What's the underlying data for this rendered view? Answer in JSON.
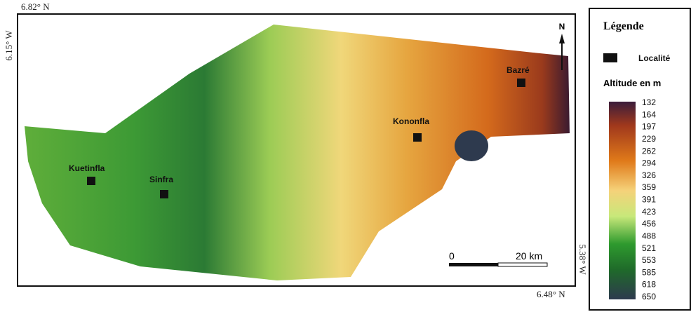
{
  "map": {
    "coordinates": {
      "top_left": "6.82° N",
      "left": "6.15° W",
      "right": "5.38° W",
      "bottom_right": "6.48° N"
    },
    "north": "N",
    "localities": [
      "Kuetinfla",
      "Sinfra",
      "Kononfla",
      "Bazré"
    ],
    "scale": {
      "start": "0",
      "end": "20 km"
    }
  },
  "legend": {
    "title": "Légende",
    "locality": "Localité",
    "altitude_title": "Altitude en m",
    "altitude_values": [
      132,
      164,
      197,
      229,
      262,
      294,
      326,
      359,
      391,
      423,
      456,
      488,
      521,
      553,
      585,
      618,
      650
    ]
  }
}
